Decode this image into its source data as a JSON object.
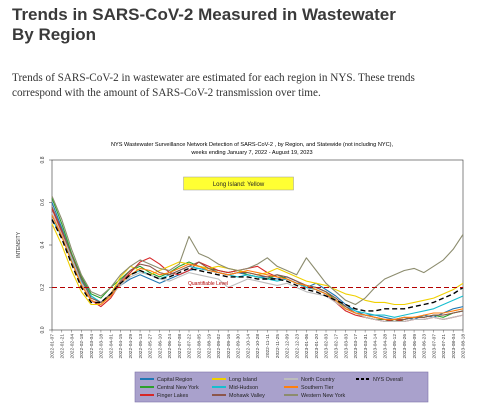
{
  "page": {
    "title_line1": "Trends in SARS-CoV-2 Measured in Wastewater",
    "title_line2": "By Region",
    "intro_line1": "Trends of SARS-CoV-2 in wastewater are estimated for each region in NYS. These trends",
    "intro_line2": "correspond with the amount of SARS-CoV-2 transmission over time."
  },
  "chart_data": {
    "type": "line",
    "title_line1": "NYS Wastewater Surveillance Network Detection of SARS-CoV-2 , by Region, and Statewide (not including NYC),",
    "title_line2": "weeks ending January 7, 2022 - August 19, 2023",
    "ylabel": "INTENSITY",
    "xlabel": "",
    "ylim": [
      0,
      0.8
    ],
    "yticks": [
      "0.0",
      "0.2",
      "0.4",
      "0.6",
      "0.8"
    ],
    "highlight_label": "Long Island: Yellow",
    "threshold": {
      "value": 0.2,
      "label": "Quantifiable Level",
      "color": "#b30000"
    },
    "x_tick_labels": [
      "2022-01-07",
      "2022-01-21",
      "2022-02-04",
      "2022-02-18",
      "2022-03-04",
      "2022-03-18",
      "2022-04-01",
      "2022-04-15",
      "2022-04-29",
      "2022-05-13",
      "2022-05-27",
      "2022-06-10",
      "2022-06-24",
      "2022-07-08",
      "2022-07-22",
      "2022-08-05",
      "2022-08-19",
      "2022-09-02",
      "2022-09-16",
      "2022-09-30",
      "2022-10-14",
      "2022-10-28",
      "2022-11-11",
      "2022-11-25",
      "2022-12-09",
      "2022-12-23",
      "2023-01-06",
      "2023-01-20",
      "2023-02-03",
      "2023-02-17",
      "2023-03-03",
      "2023-03-17",
      "2023-03-31",
      "2023-04-14",
      "2023-04-28",
      "2023-05-12",
      "2023-05-26",
      "2023-06-09",
      "2023-06-23",
      "2023-07-07",
      "2023-07-21",
      "2023-08-04",
      "2023-08-18"
    ],
    "series": [
      {
        "name": "Capital Region",
        "color": "#1f77b4",
        "dash": "",
        "values": [
          0.6,
          0.48,
          0.35,
          0.24,
          0.16,
          0.13,
          0.17,
          0.21,
          0.24,
          0.26,
          0.24,
          0.22,
          0.24,
          0.26,
          0.28,
          0.29,
          0.28,
          0.27,
          0.26,
          0.27,
          0.26,
          0.25,
          0.25,
          0.24,
          0.25,
          0.23,
          0.2,
          0.22,
          0.19,
          0.16,
          0.12,
          0.09,
          0.07,
          0.07,
          0.06,
          0.05,
          0.06,
          0.05,
          0.07,
          0.06,
          0.08,
          0.1,
          0.11
        ]
      },
      {
        "name": "Central New York",
        "color": "#2ca02c",
        "dash": "",
        "values": [
          0.62,
          0.5,
          0.36,
          0.25,
          0.17,
          0.15,
          0.2,
          0.24,
          0.28,
          0.3,
          0.27,
          0.25,
          0.27,
          0.3,
          0.32,
          0.3,
          0.29,
          0.28,
          0.27,
          0.28,
          0.26,
          0.25,
          0.24,
          0.26,
          0.24,
          0.22,
          0.21,
          0.2,
          0.18,
          0.14,
          0.1,
          0.08,
          0.06,
          0.05,
          0.05,
          0.04,
          0.05,
          0.06,
          0.06,
          0.07,
          0.06,
          0.08,
          0.09
        ]
      },
      {
        "name": "Finger Lakes",
        "color": "#d62728",
        "dash": "",
        "values": [
          0.57,
          0.46,
          0.33,
          0.22,
          0.14,
          0.11,
          0.15,
          0.22,
          0.27,
          0.32,
          0.34,
          0.31,
          0.27,
          0.26,
          0.28,
          0.32,
          0.3,
          0.28,
          0.27,
          0.28,
          0.29,
          0.3,
          0.27,
          0.25,
          0.24,
          0.22,
          0.2,
          0.19,
          0.17,
          0.13,
          0.09,
          0.07,
          0.06,
          0.05,
          0.04,
          0.05,
          0.04,
          0.05,
          0.05,
          0.06,
          0.05,
          0.06,
          0.07
        ]
      },
      {
        "name": "Long Island",
        "color": "#f0d000",
        "dash": "",
        "values": [
          0.5,
          0.4,
          0.28,
          0.18,
          0.12,
          0.12,
          0.17,
          0.25,
          0.3,
          0.28,
          0.26,
          0.28,
          0.3,
          0.32,
          0.31,
          0.3,
          0.29,
          0.3,
          0.29,
          0.28,
          0.27,
          0.26,
          0.27,
          0.29,
          0.27,
          0.25,
          0.23,
          0.22,
          0.21,
          0.19,
          0.17,
          0.16,
          0.14,
          0.13,
          0.13,
          0.12,
          0.12,
          0.13,
          0.14,
          0.15,
          0.17,
          0.19,
          0.22
        ]
      },
      {
        "name": "Mid-Hudson",
        "color": "#17becf",
        "dash": "",
        "values": [
          0.52,
          0.44,
          0.33,
          0.23,
          0.16,
          0.13,
          0.17,
          0.22,
          0.26,
          0.28,
          0.26,
          0.24,
          0.26,
          0.28,
          0.3,
          0.29,
          0.28,
          0.27,
          0.26,
          0.25,
          0.26,
          0.25,
          0.24,
          0.23,
          0.24,
          0.22,
          0.2,
          0.19,
          0.17,
          0.14,
          0.11,
          0.09,
          0.08,
          0.07,
          0.07,
          0.06,
          0.07,
          0.08,
          0.09,
          0.1,
          0.12,
          0.14,
          0.16
        ]
      },
      {
        "name": "Mohawk Valley",
        "color": "#8c564b",
        "dash": "",
        "values": [
          0.58,
          0.47,
          0.35,
          0.24,
          0.15,
          0.13,
          0.17,
          0.23,
          0.28,
          0.31,
          0.3,
          0.27,
          0.26,
          0.28,
          0.3,
          0.32,
          0.29,
          0.27,
          0.26,
          0.27,
          0.27,
          0.26,
          0.25,
          0.26,
          0.25,
          0.23,
          0.21,
          0.2,
          0.18,
          0.15,
          0.11,
          0.08,
          0.07,
          0.06,
          0.05,
          0.05,
          0.05,
          0.06,
          0.06,
          0.07,
          0.07,
          0.08,
          0.09
        ]
      },
      {
        "name": "North Country",
        "color": "#bdbdbd",
        "dash": "",
        "values": [
          0.55,
          0.45,
          0.34,
          0.22,
          0.14,
          0.12,
          0.16,
          0.21,
          0.25,
          0.27,
          0.26,
          0.24,
          0.23,
          0.25,
          0.27,
          0.26,
          0.25,
          0.24,
          0.2,
          0.22,
          0.24,
          0.23,
          0.22,
          0.21,
          0.22,
          0.2,
          0.18,
          0.17,
          0.16,
          0.13,
          0.1,
          0.08,
          0.06,
          0.05,
          0.04,
          0.04,
          0.04,
          0.05,
          0.05,
          0.06,
          0.05,
          0.06,
          0.07
        ]
      },
      {
        "name": "Southern Tier",
        "color": "#ff7f0e",
        "dash": "",
        "values": [
          0.54,
          0.44,
          0.32,
          0.21,
          0.14,
          0.12,
          0.16,
          0.22,
          0.26,
          0.29,
          0.28,
          0.26,
          0.27,
          0.29,
          0.31,
          0.3,
          0.28,
          0.27,
          0.26,
          0.27,
          0.28,
          0.27,
          0.26,
          0.25,
          0.24,
          0.22,
          0.21,
          0.19,
          0.17,
          0.14,
          0.1,
          0.08,
          0.07,
          0.06,
          0.05,
          0.05,
          0.06,
          0.06,
          0.07,
          0.08,
          0.08,
          0.09,
          0.1
        ]
      },
      {
        "name": "Western New York",
        "color": "#8c8c6e",
        "dash": "",
        "values": [
          0.63,
          0.52,
          0.38,
          0.26,
          0.18,
          0.16,
          0.2,
          0.26,
          0.3,
          0.33,
          0.31,
          0.29,
          0.28,
          0.31,
          0.44,
          0.36,
          0.34,
          0.31,
          0.29,
          0.28,
          0.29,
          0.31,
          0.34,
          0.3,
          0.28,
          0.26,
          0.34,
          0.28,
          0.22,
          0.18,
          0.14,
          0.12,
          0.15,
          0.2,
          0.24,
          0.26,
          0.28,
          0.29,
          0.27,
          0.3,
          0.33,
          0.38,
          0.45
        ]
      },
      {
        "name": "NYS Overall",
        "color": "#000000",
        "dash": "5,3",
        "values": [
          0.52,
          0.43,
          0.31,
          0.2,
          0.13,
          0.13,
          0.17,
          0.22,
          0.26,
          0.28,
          0.26,
          0.24,
          0.25,
          0.27,
          0.29,
          0.28,
          0.27,
          0.26,
          0.25,
          0.25,
          0.25,
          0.24,
          0.24,
          0.24,
          0.23,
          0.21,
          0.19,
          0.18,
          0.16,
          0.14,
          0.12,
          0.1,
          0.09,
          0.09,
          0.1,
          0.1,
          0.1,
          0.11,
          0.12,
          0.13,
          0.15,
          0.17,
          0.2
        ]
      }
    ]
  }
}
